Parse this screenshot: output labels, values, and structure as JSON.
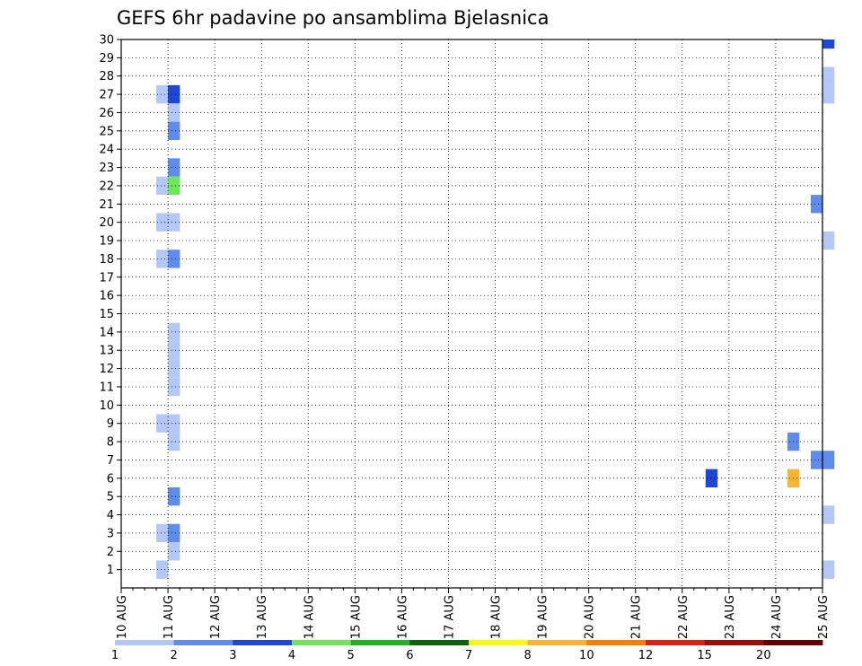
{
  "chart_data": {
    "type": "heatmap",
    "title": "GEFS 6hr padavine po ansamblima Bjelasnica",
    "xlabel": "",
    "ylabel": "",
    "x_tick_labels": [
      "10 AUG",
      "11 AUG",
      "12 AUG",
      "13 AUG",
      "14 AUG",
      "15 AUG",
      "16 AUG",
      "17 AUG",
      "18 AUG",
      "19 AUG",
      "20 AUG",
      "21 AUG",
      "22 AUG",
      "23 AUG",
      "24 AUG",
      "25 AUG"
    ],
    "y_tick_labels": [
      "1",
      "2",
      "3",
      "4",
      "5",
      "6",
      "7",
      "8",
      "9",
      "10",
      "11",
      "12",
      "13",
      "14",
      "15",
      "16",
      "17",
      "18",
      "19",
      "20",
      "21",
      "22",
      "23",
      "24",
      "25",
      "26",
      "27",
      "28",
      "29",
      "30"
    ],
    "ylim": [
      0,
      30
    ],
    "time_steps_per_day": 4,
    "grid": true,
    "legend": {
      "position": "bottom",
      "bounds": [
        "1",
        "2",
        "3",
        "4",
        "5",
        "6",
        "7",
        "8",
        "10",
        "12",
        "15",
        "20"
      ],
      "colors": [
        "#b4c8f5",
        "#5f8ceb",
        "#1e46d7",
        "#6ee65a",
        "#1eb41e",
        "#0a640a",
        "#fafa0f",
        "#fab432",
        "#fa7d00",
        "#e11e0f",
        "#a00a0a",
        "#640000"
      ]
    },
    "cells": [
      [
        30,
        60,
        3
      ],
      [
        30,
        68,
        10
      ],
      [
        30,
        76,
        11
      ],
      [
        30,
        78,
        2
      ],
      [
        30,
        148,
        8
      ],
      [
        30,
        149,
        6
      ],
      [
        29,
        120,
        6
      ],
      [
        29,
        121,
        7
      ],
      [
        28,
        60,
        1
      ],
      [
        28,
        88,
        2
      ],
      [
        28,
        89,
        1
      ],
      [
        27,
        3,
        1
      ],
      [
        27,
        4,
        3
      ],
      [
        27,
        60,
        1
      ],
      [
        27,
        68,
        5
      ],
      [
        27,
        69,
        3
      ],
      [
        27,
        75,
        2
      ],
      [
        27,
        76,
        2
      ],
      [
        27,
        98,
        12
      ],
      [
        27,
        116,
        1
      ],
      [
        27,
        117,
        2
      ],
      [
        27,
        124,
        1
      ],
      [
        27,
        125,
        2
      ],
      [
        27,
        126,
        2
      ],
      [
        27,
        127,
        5
      ],
      [
        27,
        128,
        3
      ],
      [
        27,
        129,
        8
      ],
      [
        27,
        130,
        2
      ],
      [
        27,
        132,
        1
      ],
      [
        27,
        133,
        10
      ],
      [
        27,
        134,
        3
      ],
      [
        26,
        4,
        1
      ],
      [
        25,
        4,
        2
      ],
      [
        25,
        68,
        11
      ],
      [
        25,
        69,
        4
      ],
      [
        25,
        70,
        3
      ],
      [
        25,
        74,
        1
      ],
      [
        25,
        114,
        1
      ],
      [
        25,
        126,
        3
      ],
      [
        25,
        130,
        3
      ],
      [
        25,
        132,
        2
      ],
      [
        25,
        133,
        3
      ],
      [
        24,
        74,
        1
      ],
      [
        24,
        126,
        1
      ],
      [
        24,
        127,
        5
      ],
      [
        23,
        4,
        2
      ],
      [
        23,
        69,
        2
      ],
      [
        23,
        74,
        5
      ],
      [
        23,
        87,
        2
      ],
      [
        23,
        88,
        3
      ],
      [
        22,
        3,
        1
      ],
      [
        22,
        4,
        4
      ],
      [
        22,
        68,
        4
      ],
      [
        21,
        59,
        2
      ],
      [
        21,
        126,
        12
      ],
      [
        21,
        127,
        2
      ],
      [
        21,
        128,
        3
      ],
      [
        21,
        129,
        2
      ],
      [
        21,
        130,
        1
      ],
      [
        21,
        148,
        6
      ],
      [
        20,
        3,
        1
      ],
      [
        20,
        4,
        1
      ],
      [
        19,
        60,
        1
      ],
      [
        19,
        68,
        5
      ],
      [
        19,
        69,
        1
      ],
      [
        19,
        74,
        5
      ],
      [
        19,
        87,
        2
      ],
      [
        19,
        108,
        3
      ],
      [
        19,
        128,
        2
      ],
      [
        19,
        129,
        8
      ],
      [
        18,
        3,
        1
      ],
      [
        18,
        4,
        2
      ],
      [
        17,
        68,
        12
      ],
      [
        17,
        74,
        2
      ],
      [
        17,
        148,
        1
      ],
      [
        15,
        120,
        5
      ],
      [
        15,
        121,
        7
      ],
      [
        14,
        4,
        1
      ],
      [
        14,
        113,
        4
      ],
      [
        14,
        150,
        1
      ],
      [
        13,
        4,
        1
      ],
      [
        13,
        68,
        2
      ],
      [
        12,
        4,
        1
      ],
      [
        12,
        96,
        1
      ],
      [
        11,
        4,
        1
      ],
      [
        11,
        68,
        6
      ],
      [
        10,
        90,
        1
      ],
      [
        10,
        120,
        1
      ],
      [
        10,
        121,
        1
      ],
      [
        10,
        124,
        3
      ],
      [
        10,
        128,
        1
      ],
      [
        9,
        3,
        1
      ],
      [
        9,
        4,
        1
      ],
      [
        8,
        4,
        1
      ],
      [
        8,
        57,
        2
      ],
      [
        8,
        67,
        1
      ],
      [
        8,
        68,
        7
      ],
      [
        8,
        112,
        1
      ],
      [
        8,
        120,
        9
      ],
      [
        8,
        121,
        9
      ],
      [
        8,
        127,
        2
      ],
      [
        8,
        128,
        3
      ],
      [
        8,
        131,
        1
      ],
      [
        8,
        133,
        2
      ],
      [
        8,
        134,
        5
      ],
      [
        7,
        59,
        2
      ],
      [
        7,
        60,
        2
      ],
      [
        7,
        66,
        4
      ],
      [
        7,
        67,
        5
      ],
      [
        7,
        68,
        2
      ],
      [
        7,
        69,
        1
      ],
      [
        7,
        74,
        1
      ],
      [
        7,
        87,
        1
      ],
      [
        7,
        96,
        3
      ],
      [
        7,
        97,
        1
      ],
      [
        7,
        109,
        1
      ],
      [
        6,
        50,
        3
      ],
      [
        6,
        57,
        8
      ],
      [
        5,
        4,
        2
      ],
      [
        4,
        60,
        1
      ],
      [
        4,
        65,
        1
      ],
      [
        4,
        123,
        2
      ],
      [
        4,
        124,
        1
      ],
      [
        4,
        127,
        11
      ],
      [
        3,
        3,
        1
      ],
      [
        3,
        4,
        2
      ],
      [
        3,
        92,
        1
      ],
      [
        3,
        100,
        1
      ],
      [
        3,
        119,
        2
      ],
      [
        3,
        123,
        1
      ],
      [
        3,
        127,
        1
      ],
      [
        3,
        150,
        1
      ],
      [
        2,
        4,
        1
      ],
      [
        2,
        68,
        4
      ],
      [
        2,
        69,
        3
      ],
      [
        2,
        74,
        1
      ],
      [
        2,
        123,
        1
      ],
      [
        2,
        129,
        6
      ],
      [
        2,
        131,
        3
      ],
      [
        2,
        132,
        3
      ],
      [
        1,
        3,
        1
      ],
      [
        1,
        60,
        1
      ],
      [
        1,
        68,
        1
      ],
      [
        1,
        69,
        2
      ],
      [
        1,
        70,
        1
      ],
      [
        1,
        74,
        3
      ],
      [
        1,
        75,
        6
      ],
      [
        1,
        119,
        1
      ],
      [
        1,
        120,
        5
      ],
      [
        1,
        121,
        2
      ],
      [
        1,
        122,
        2
      ],
      [
        1,
        123,
        2
      ],
      [
        1,
        124,
        9
      ],
      [
        1,
        125,
        9
      ],
      [
        1,
        126,
        4
      ],
      [
        1,
        131,
        2
      ],
      [
        0,
        68,
        11
      ],
      [
        0,
        73,
        1
      ],
      [
        0,
        74,
        7
      ],
      [
        0,
        75,
        1
      ],
      [
        0,
        87,
        2
      ],
      [
        0,
        110,
        2
      ]
    ]
  }
}
